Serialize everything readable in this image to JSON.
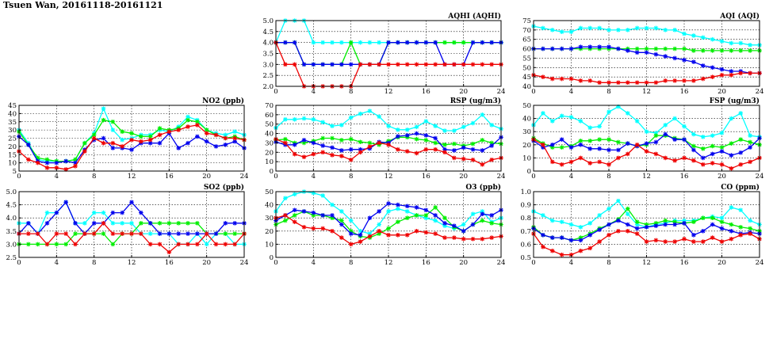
{
  "page_title": "Tsuen Wan, 20161118-20161121",
  "series_colors": [
    "#00ffff",
    "#00ee00",
    "#0000ee",
    "#ee0000"
  ],
  "chart_data": [
    {
      "id": "aqhi",
      "type": "line",
      "title": "AQHI (AQHI)",
      "xlim": [
        0,
        24
      ],
      "xticks": [
        0,
        4,
        8,
        12,
        16,
        20,
        24
      ],
      "ylim": [
        2.0,
        5.0
      ],
      "yticks": [
        "2.0",
        "2.5",
        "3.0",
        "3.5",
        "4.0",
        "4.5",
        "5.0"
      ],
      "grid": true,
      "series": [
        {
          "color": "#00ffff",
          "values": [
            4,
            5,
            5,
            5,
            4,
            4,
            4,
            4,
            4,
            4,
            4,
            4,
            4,
            4,
            4,
            4,
            4,
            4,
            4,
            4,
            4,
            4,
            4,
            4,
            4
          ]
        },
        {
          "color": "#00ee00",
          "values": [
            4,
            4,
            4,
            3,
            3,
            3,
            3,
            3,
            4,
            3,
            3,
            3,
            4,
            4,
            4,
            4,
            4,
            4,
            4,
            4,
            4,
            4,
            4,
            4,
            4
          ]
        },
        {
          "color": "#0000ee",
          "values": [
            4,
            4,
            4,
            3,
            3,
            3,
            3,
            3,
            3,
            3,
            3,
            3,
            4,
            4,
            4,
            4,
            4,
            4,
            3,
            3,
            3,
            4,
            4,
            4,
            4
          ]
        },
        {
          "color": "#ee0000",
          "values": [
            4,
            3,
            3,
            2,
            2,
            2,
            2,
            2,
            2,
            3,
            3,
            3,
            3,
            3,
            3,
            3,
            3,
            3,
            3,
            3,
            3,
            3,
            3,
            3,
            3
          ]
        }
      ]
    },
    {
      "id": "aqi",
      "type": "line",
      "title": "AQI (AQI)",
      "xlim": [
        0,
        24
      ],
      "xticks": [
        0,
        4,
        8,
        12,
        16,
        20,
        24
      ],
      "ylim": [
        40,
        75
      ],
      "yticks": [
        "40",
        "45",
        "50",
        "55",
        "60",
        "65",
        "70",
        "75"
      ],
      "grid": true,
      "series": [
        {
          "color": "#00ffff",
          "values": [
            72,
            71,
            70,
            69,
            69,
            71,
            71,
            71,
            70,
            70,
            70,
            71,
            71,
            71,
            70,
            70,
            68,
            67,
            66,
            65,
            64,
            63,
            63,
            62,
            62
          ]
        },
        {
          "color": "#00ee00",
          "values": [
            60,
            60,
            60,
            60,
            60,
            60,
            60,
            60,
            60,
            60,
            60,
            60,
            60,
            60,
            60,
            60,
            60,
            59,
            59,
            59,
            59,
            59,
            59,
            59,
            59
          ]
        },
        {
          "color": "#0000ee",
          "values": [
            60,
            60,
            60,
            60,
            60,
            61,
            61,
            61,
            61,
            60,
            59,
            58,
            58,
            57,
            56,
            55,
            54,
            53,
            51,
            50,
            49,
            48,
            48,
            47,
            47
          ]
        },
        {
          "color": "#ee0000",
          "values": [
            46,
            45,
            44,
            44,
            44,
            43,
            43,
            42,
            42,
            42,
            42,
            42,
            42,
            42,
            43,
            43,
            43,
            43,
            44,
            45,
            46,
            46,
            47,
            47,
            47
          ]
        }
      ]
    },
    {
      "id": "no2",
      "type": "line",
      "title": "NO2 (ppb)",
      "xlim": [
        0,
        24
      ],
      "xticks": [
        0,
        4,
        8,
        12,
        16,
        20,
        24
      ],
      "ylim": [
        5,
        45
      ],
      "yticks": [
        "5",
        "10",
        "15",
        "20",
        "25",
        "30",
        "35",
        "40",
        "45"
      ],
      "grid": true,
      "series": [
        {
          "color": "#00ffff",
          "values": [
            30,
            22,
            12,
            11,
            11,
            11,
            12,
            22,
            28,
            43,
            30,
            24,
            25,
            27,
            27,
            30,
            29,
            32,
            38,
            36,
            30,
            28,
            27,
            29,
            27
          ]
        },
        {
          "color": "#00ee00",
          "values": [
            29,
            21,
            13,
            12,
            11,
            11,
            12,
            22,
            27,
            36,
            35,
            29,
            28,
            26,
            26,
            31,
            30,
            31,
            36,
            35,
            30,
            27,
            25,
            26,
            24
          ]
        },
        {
          "color": "#0000ee",
          "values": [
            26,
            21,
            11,
            10,
            10,
            11,
            10,
            18,
            24,
            25,
            19,
            19,
            18,
            22,
            22,
            22,
            28,
            19,
            22,
            26,
            23,
            20,
            21,
            23,
            19
          ]
        },
        {
          "color": "#ee0000",
          "values": [
            17,
            12,
            10,
            7,
            7,
            6,
            8,
            17,
            25,
            22,
            22,
            20,
            24,
            23,
            24,
            27,
            29,
            30,
            32,
            33,
            28,
            27,
            25,
            25,
            24
          ]
        }
      ]
    },
    {
      "id": "rsp",
      "type": "line",
      "title": "RSP (ug/m3)",
      "xlim": [
        0,
        24
      ],
      "xticks": [
        0,
        4,
        8,
        12,
        16,
        20,
        24
      ],
      "ylim": [
        0,
        70
      ],
      "yticks": [
        "0",
        "10",
        "20",
        "30",
        "40",
        "50",
        "60",
        "70"
      ],
      "grid": true,
      "series": [
        {
          "color": "#00ffff",
          "values": [
            46,
            55,
            55,
            56,
            55,
            52,
            48,
            49,
            57,
            61,
            64,
            58,
            48,
            44,
            44,
            47,
            53,
            48,
            43,
            43,
            47,
            51,
            60,
            49,
            45
          ]
        },
        {
          "color": "#00ee00",
          "values": [
            33,
            34,
            30,
            30,
            32,
            35,
            35,
            33,
            34,
            31,
            30,
            28,
            32,
            36,
            36,
            34,
            33,
            30,
            28,
            29,
            27,
            29,
            33,
            30,
            29
          ]
        },
        {
          "color": "#0000ee",
          "values": [
            31,
            28,
            28,
            33,
            30,
            27,
            25,
            22,
            23,
            23,
            24,
            31,
            30,
            37,
            38,
            40,
            38,
            35,
            23,
            22,
            25,
            23,
            22,
            27,
            36
          ]
        },
        {
          "color": "#ee0000",
          "values": [
            34,
            30,
            18,
            15,
            18,
            20,
            17,
            16,
            12,
            20,
            26,
            30,
            28,
            23,
            21,
            19,
            23,
            23,
            20,
            14,
            13,
            12,
            7,
            12,
            14
          ]
        }
      ]
    },
    {
      "id": "fsp",
      "type": "line",
      "title": "FSP (ug/m3)",
      "xlim": [
        0,
        24
      ],
      "xticks": [
        0,
        4,
        8,
        12,
        16,
        20,
        24
      ],
      "ylim": [
        0,
        50
      ],
      "yticks": [
        "0",
        "10",
        "20",
        "30",
        "40",
        "50"
      ],
      "grid": true,
      "series": [
        {
          "color": "#00ffff",
          "values": [
            35,
            44,
            38,
            42,
            41,
            38,
            33,
            34,
            45,
            49,
            44,
            38,
            30,
            29,
            35,
            40,
            34,
            28,
            26,
            27,
            29,
            40,
            44,
            27,
            26
          ]
        },
        {
          "color": "#00ee00",
          "values": [
            25,
            21,
            18,
            18,
            19,
            23,
            23,
            24,
            24,
            22,
            21,
            19,
            20,
            27,
            27,
            25,
            24,
            19,
            17,
            19,
            18,
            21,
            24,
            22,
            20
          ]
        },
        {
          "color": "#0000ee",
          "values": [
            23,
            18,
            20,
            24,
            18,
            20,
            17,
            17,
            16,
            16,
            21,
            19,
            21,
            22,
            28,
            24,
            24,
            16,
            10,
            13,
            15,
            12,
            14,
            18,
            25
          ]
        },
        {
          "color": "#ee0000",
          "values": [
            24,
            20,
            7,
            5,
            7,
            10,
            6,
            7,
            5,
            10,
            13,
            20,
            15,
            13,
            10,
            8,
            10,
            8,
            5,
            6,
            5,
            2,
            5,
            7,
            10
          ]
        }
      ]
    },
    {
      "id": "so2",
      "type": "line",
      "title": "SO2 (ppb)",
      "xlim": [
        0,
        24
      ],
      "xticks": [
        0,
        4,
        8,
        12,
        16,
        20,
        24
      ],
      "ylim": [
        2.5,
        5.0
      ],
      "yticks": [
        "2.5",
        "3.0",
        "3.5",
        "4.0",
        "4.5",
        "5.0"
      ],
      "grid": true,
      "series": [
        {
          "color": "#00ffff",
          "values": [
            3.8,
            3.8,
            3.4,
            4.2,
            4.2,
            4.6,
            3.8,
            3.8,
            4.2,
            4.2,
            3.8,
            3.8,
            3.8,
            3.4,
            3.4,
            3.4,
            3.4,
            3.0,
            3.0,
            3.4,
            3.0,
            3.4,
            3.4,
            3.0,
            3.0
          ]
        },
        {
          "color": "#00ee00",
          "values": [
            3.0,
            3.0,
            3.0,
            3.0,
            3.0,
            3.0,
            3.4,
            3.4,
            3.4,
            3.4,
            3.0,
            3.4,
            3.4,
            3.8,
            3.8,
            3.8,
            3.8,
            3.8,
            3.8,
            3.8,
            3.4,
            3.4,
            3.4,
            3.4,
            3.4
          ]
        },
        {
          "color": "#0000ee",
          "values": [
            3.4,
            3.8,
            3.4,
            3.8,
            4.2,
            4.6,
            3.8,
            3.4,
            3.8,
            3.8,
            4.2,
            4.2,
            4.6,
            4.2,
            3.8,
            3.4,
            3.4,
            3.4,
            3.4,
            3.4,
            3.4,
            3.4,
            3.8,
            3.8,
            3.8
          ]
        },
        {
          "color": "#ee0000",
          "values": [
            3.4,
            3.4,
            3.4,
            3.0,
            3.4,
            3.4,
            3.0,
            3.4,
            3.4,
            3.8,
            3.4,
            3.4,
            3.4,
            3.4,
            3.0,
            3.0,
            2.7,
            3.0,
            3.0,
            3.0,
            3.4,
            3.0,
            3.0,
            3.0,
            3.4
          ]
        }
      ]
    },
    {
      "id": "o3",
      "type": "line",
      "title": "O3 (ppb)",
      "xlim": [
        0,
        24
      ],
      "xticks": [
        0,
        4,
        8,
        12,
        16,
        20,
        24
      ],
      "ylim": [
        0,
        50
      ],
      "yticks": [
        "0",
        "10",
        "20",
        "30",
        "40",
        "50"
      ],
      "grid": true,
      "series": [
        {
          "color": "#00ffff",
          "values": [
            35,
            45,
            48,
            50,
            49,
            47,
            40,
            35,
            28,
            20,
            18,
            25,
            35,
            37,
            35,
            32,
            30,
            28,
            24,
            22,
            25,
            33,
            35,
            27,
            30
          ]
        },
        {
          "color": "#00ee00",
          "values": [
            25,
            28,
            32,
            35,
            32,
            32,
            30,
            28,
            20,
            16,
            15,
            18,
            22,
            27,
            30,
            32,
            32,
            38,
            30,
            23,
            20,
            25,
            28,
            26,
            25
          ]
        },
        {
          "color": "#0000ee",
          "values": [
            28,
            32,
            36,
            35,
            34,
            32,
            32,
            25,
            18,
            17,
            30,
            35,
            41,
            40,
            39,
            38,
            36,
            32,
            26,
            24,
            20,
            25,
            33,
            32,
            36
          ]
        },
        {
          "color": "#ee0000",
          "values": [
            30,
            32,
            27,
            23,
            22,
            22,
            20,
            15,
            10,
            12,
            16,
            20,
            17,
            17,
            17,
            20,
            19,
            18,
            15,
            15,
            14,
            14,
            14,
            15,
            16
          ]
        }
      ]
    },
    {
      "id": "co",
      "type": "line",
      "title": "CO (ppm)",
      "xlim": [
        0,
        24
      ],
      "xticks": [
        0,
        4,
        8,
        12,
        16,
        20,
        24
      ],
      "ylim": [
        0.5,
        1.0
      ],
      "yticks": [
        "0.5",
        "0.6",
        "0.7",
        "0.8",
        "0.9",
        "1.0"
      ],
      "grid": true,
      "series": [
        {
          "color": "#00ffff",
          "values": [
            0.85,
            0.82,
            0.78,
            0.77,
            0.75,
            0.73,
            0.76,
            0.82,
            0.87,
            0.93,
            0.83,
            0.75,
            0.73,
            0.75,
            0.76,
            0.78,
            0.78,
            0.78,
            0.8,
            0.81,
            0.8,
            0.88,
            0.86,
            0.78,
            0.75
          ]
        },
        {
          "color": "#00ee00",
          "values": [
            0.73,
            0.67,
            0.65,
            0.65,
            0.63,
            0.65,
            0.68,
            0.72,
            0.75,
            0.79,
            0.87,
            0.77,
            0.75,
            0.76,
            0.78,
            0.77,
            0.76,
            0.77,
            0.8,
            0.8,
            0.77,
            0.75,
            0.73,
            0.72,
            0.7
          ]
        },
        {
          "color": "#0000ee",
          "values": [
            0.72,
            0.67,
            0.65,
            0.65,
            0.63,
            0.63,
            0.67,
            0.71,
            0.75,
            0.78,
            0.75,
            0.72,
            0.73,
            0.74,
            0.75,
            0.75,
            0.76,
            0.67,
            0.7,
            0.75,
            0.72,
            0.7,
            0.68,
            0.69,
            0.68
          ]
        },
        {
          "color": "#ee0000",
          "values": [
            0.68,
            0.58,
            0.55,
            0.52,
            0.52,
            0.55,
            0.57,
            0.62,
            0.67,
            0.7,
            0.7,
            0.68,
            0.62,
            0.63,
            0.62,
            0.62,
            0.64,
            0.62,
            0.62,
            0.65,
            0.62,
            0.64,
            0.67,
            0.68,
            0.64
          ]
        }
      ]
    }
  ]
}
